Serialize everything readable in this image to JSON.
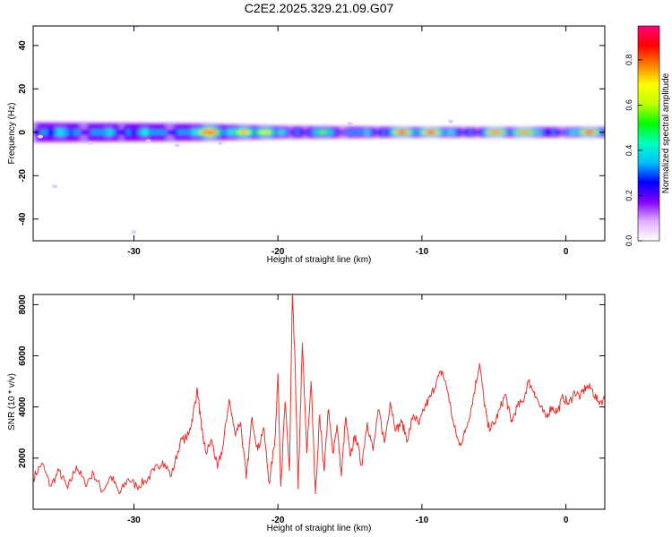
{
  "title": "C2E2.2025.329.21.09.G07",
  "chart_data": [
    {
      "type": "heatmap",
      "xlabel": "Height of straight line (km)",
      "ylabel": "Frequency (Hz)",
      "xlim": [
        -37,
        2.7
      ],
      "ylim": [
        -50,
        49
      ],
      "xticks": [
        -30,
        -20,
        -10,
        0
      ],
      "xtick_labels": [
        "-30",
        "-20",
        "-10",
        "0"
      ],
      "yticks": [
        -40,
        -20,
        0,
        20,
        40
      ],
      "ytick_labels": [
        "-40",
        "-20",
        "0",
        "20",
        "40"
      ],
      "colorbar": {
        "label": "Normalized spectral amplitude",
        "range": [
          0,
          0.95
        ],
        "ticks": [
          0.0,
          0.2,
          0.4,
          0.6,
          0.8
        ],
        "tick_labels": [
          "0.0",
          "0.2",
          "0.4",
          "0.6",
          "0.8"
        ],
        "colors": [
          "#ffffff",
          "#e0b0ff",
          "#8000ff",
          "#0000ff",
          "#00c0ff",
          "#00ffc0",
          "#00ff00",
          "#c0ff00",
          "#ffff00",
          "#ff8000",
          "#ff0000",
          "#ff0080"
        ]
      },
      "band": {
        "center_hz": 0,
        "halfwidth_hz": [
          {
            "x": -37,
            "w": 4
          },
          {
            "x": -26,
            "w": 3.5
          },
          {
            "x": -20,
            "w": 2.5
          },
          {
            "x": -10,
            "w": 2
          },
          {
            "x": 2.7,
            "w": 2
          }
        ],
        "hotspots": [
          {
            "x": -24.9,
            "amp": 0.9
          },
          {
            "x": -22.5,
            "amp": 0.75
          },
          {
            "x": -21.0,
            "amp": 0.7
          },
          {
            "x": -17.0,
            "amp": 0.6
          },
          {
            "x": -11.5,
            "amp": 0.95
          },
          {
            "x": -9.5,
            "amp": 0.95
          },
          {
            "x": -5.0,
            "amp": 0.9
          },
          {
            "x": -3.0,
            "amp": 0.85
          },
          {
            "x": 1.5,
            "amp": 0.95
          }
        ]
      }
    },
    {
      "type": "line",
      "xlabel": "Height of straight line (km)",
      "ylabel": "SNR (10 * v/v)",
      "xlim": [
        -37,
        2.7
      ],
      "ylim": [
        0,
        8400
      ],
      "xticks": [
        -30,
        -20,
        -10,
        0
      ],
      "xtick_labels": [
        "-30",
        "-20",
        "-10",
        "0"
      ],
      "yticks": [
        2000,
        4000,
        6000,
        8000
      ],
      "ytick_labels": [
        "2000",
        "4000",
        "6000",
        "8000"
      ],
      "color": "#e8332e",
      "series": [
        {
          "name": "SNR",
          "x": [
            -37,
            -36.4,
            -35.8,
            -35.2,
            -34.6,
            -34,
            -33.4,
            -32.8,
            -32.2,
            -31.6,
            -31,
            -30.4,
            -29.8,
            -29.2,
            -28.6,
            -28,
            -27.4,
            -26.8,
            -26.2,
            -25.9,
            -25.6,
            -25.3,
            -25,
            -24.6,
            -24.2,
            -23.8,
            -23.4,
            -23,
            -22.6,
            -22.2,
            -21.8,
            -21.4,
            -21,
            -20.6,
            -20.2,
            -20,
            -19.8,
            -19.5,
            -19.2,
            -19.0,
            -18.8,
            -18.6,
            -18.3,
            -18,
            -17.7,
            -17.4,
            -17.1,
            -16.8,
            -16.5,
            -16.2,
            -15.9,
            -15.6,
            -15.3,
            -15,
            -14.6,
            -14.2,
            -13.8,
            -13.4,
            -13,
            -12.6,
            -12.2,
            -11.8,
            -11.4,
            -11,
            -10.6,
            -10.2,
            -9.8,
            -9.4,
            -9,
            -8.6,
            -8.2,
            -7.8,
            -7.4,
            -7,
            -6.6,
            -6.3,
            -6,
            -5.7,
            -5.4,
            -5,
            -4.6,
            -4.2,
            -3.8,
            -3.4,
            -3,
            -2.6,
            -2.2,
            -1.8,
            -1.4,
            -1,
            -0.6,
            -0.2,
            0.2,
            0.6,
            1,
            1.4,
            1.8,
            2.2,
            2.7
          ],
          "values": [
            1200,
            1800,
            900,
            1500,
            800,
            1700,
            1000,
            1400,
            700,
            1300,
            600,
            1200,
            900,
            1100,
            1500,
            1900,
            1300,
            2600,
            2900,
            3700,
            4700,
            3100,
            2200,
            2700,
            1600,
            2500,
            4300,
            3000,
            3400,
            1200,
            3600,
            2300,
            3200,
            1000,
            2800,
            5300,
            900,
            4200,
            1500,
            8400,
            5500,
            800,
            6500,
            2200,
            5000,
            600,
            3700,
            1500,
            3900,
            2200,
            3300,
            1300,
            3600,
            2100,
            2900,
            1700,
            3400,
            2300,
            3900,
            2600,
            4200,
            3100,
            3400,
            2700,
            3700,
            3300,
            4000,
            4400,
            5000,
            5400,
            4600,
            3300,
            2500,
            3000,
            3900,
            4800,
            5700,
            4300,
            3200,
            3300,
            3900,
            4500,
            3400,
            4000,
            4200,
            5000,
            4600,
            4000,
            3600,
            4000,
            3800,
            4400,
            4100,
            4600,
            4400,
            4800,
            4700,
            4200,
            4300
          ]
        }
      ]
    }
  ]
}
